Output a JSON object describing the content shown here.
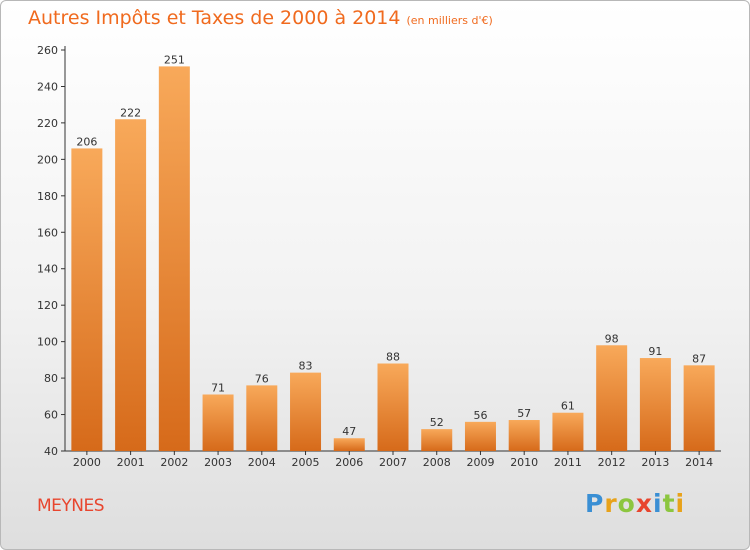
{
  "header": {
    "title": "Autres Impôts et Taxes de 2000 à 2014",
    "subtitle": "(en milliers d'€)"
  },
  "footer": {
    "town": "MEYNES",
    "logo_letters": [
      {
        "ch": "P",
        "color": "#3a8fd4"
      },
      {
        "ch": "r",
        "color": "#e8a21a"
      },
      {
        "ch": "o",
        "color": "#8cc63f"
      },
      {
        "ch": "x",
        "color": "#e8452e"
      },
      {
        "ch": "i",
        "color": "#3a8fd4"
      },
      {
        "ch": "t",
        "color": "#8cc63f"
      },
      {
        "ch": "i",
        "color": "#e8a21a"
      }
    ]
  },
  "colors": {
    "bar_light": "#f8a95a",
    "bar_dark": "#d66a1a",
    "axis": "#333333",
    "title": "#f06a1e"
  },
  "chart_data": {
    "type": "bar",
    "title": "Autres Impôts et Taxes de 2000 à 2014",
    "subtitle": "(en milliers d'€)",
    "xlabel": "",
    "ylabel": "",
    "categories": [
      "2000",
      "2001",
      "2002",
      "2003",
      "2004",
      "2005",
      "2006",
      "2007",
      "2008",
      "2009",
      "2010",
      "2011",
      "2012",
      "2013",
      "2014"
    ],
    "values": [
      206,
      222,
      251,
      71,
      76,
      83,
      47,
      88,
      52,
      56,
      57,
      61,
      98,
      91,
      87
    ],
    "ylim": [
      40,
      260
    ],
    "yticks": [
      40,
      60,
      80,
      100,
      120,
      140,
      160,
      180,
      200,
      220,
      240,
      260
    ],
    "grid": false,
    "data_labels": true
  }
}
